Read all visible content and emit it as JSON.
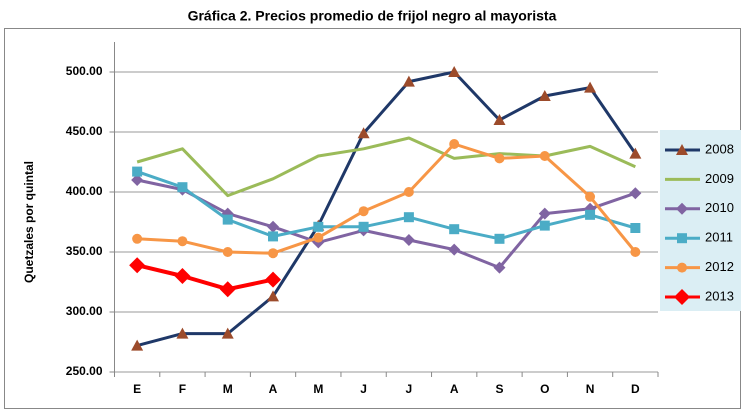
{
  "chart_data": {
    "type": "line",
    "title": "Gráfica 2.  Precios promedio de frijol negro al mayorista",
    "y_label": "Quetzales por quintal",
    "categories": [
      "E",
      "F",
      "M",
      "A",
      "M",
      "J",
      "J",
      "A",
      "S",
      "O",
      "N",
      "D"
    ],
    "ylim": [
      250,
      525
    ],
    "yticks": [
      {
        "value": 250,
        "label": "250.00"
      },
      {
        "value": 300,
        "label": "300.00"
      },
      {
        "value": 350,
        "label": "350.00"
      },
      {
        "value": 400,
        "label": "400.00"
      },
      {
        "value": 450,
        "label": "450.00"
      },
      {
        "value": 500,
        "label": "500.00"
      }
    ],
    "grid": true,
    "legend": "right",
    "series": [
      {
        "name": "2008",
        "color": "#1f3868",
        "marker": "triangle",
        "marker_color": "#9c4b2b",
        "values": [
          272,
          282,
          282,
          313,
          372,
          449,
          492,
          500,
          460,
          480,
          487,
          432
        ]
      },
      {
        "name": "2009",
        "color": "#9bbb59",
        "marker": "none",
        "marker_color": "#9bbb59",
        "values": [
          425,
          436,
          397,
          411,
          430,
          436,
          445,
          428,
          432,
          430,
          438,
          421
        ]
      },
      {
        "name": "2010",
        "color": "#8064a2",
        "marker": "diamond",
        "marker_color": "#8064a2",
        "values": [
          410,
          402,
          382,
          371,
          358,
          368,
          360,
          352,
          337,
          382,
          386,
          399
        ]
      },
      {
        "name": "2011",
        "color": "#4bacc6",
        "marker": "square",
        "marker_color": "#4bacc6",
        "values": [
          417,
          404,
          377,
          363,
          371,
          371,
          379,
          369,
          361,
          372,
          381,
          370
        ]
      },
      {
        "name": "2012",
        "color": "#f79646",
        "marker": "circle",
        "marker_color": "#f79646",
        "values": [
          361,
          359,
          350,
          349,
          362,
          384,
          400,
          440,
          428,
          430,
          396,
          350
        ]
      },
      {
        "name": "2013",
        "color": "#ff0000",
        "marker": "bigdiamond",
        "marker_color": "#ff0000",
        "values": [
          339,
          330,
          319,
          327,
          null,
          null,
          null,
          null,
          null,
          null,
          null,
          null
        ]
      }
    ]
  }
}
